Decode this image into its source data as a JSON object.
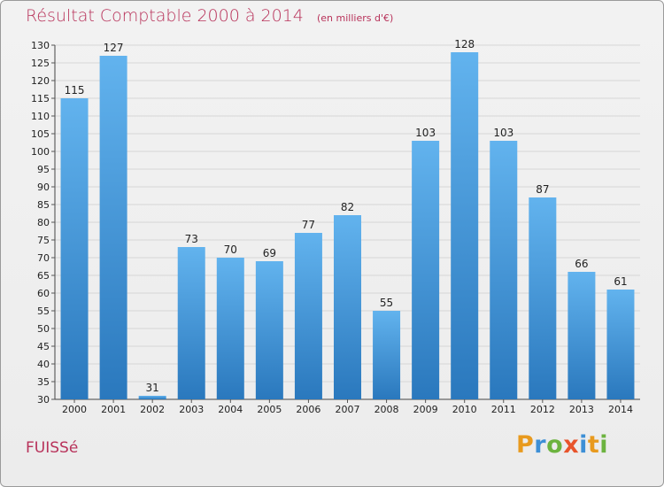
{
  "header": {
    "title": "Résultat Comptable 2000 à 2014",
    "unit": "(en milliers d'€)"
  },
  "commune": "FUISSé",
  "brand": {
    "p": "P",
    "r": "r",
    "o": "o",
    "x": "x",
    "i": "i",
    "t": "t",
    "i2": "i"
  },
  "colors": {
    "bar_top": "#62b3ee",
    "bar_bottom": "#2a78bd",
    "title": "#b8325a"
  },
  "chart_data": {
    "type": "bar",
    "title": "Résultat Comptable 2000 à 2014",
    "ylabel": "(en milliers d'€)",
    "xlabel": "",
    "categories": [
      "2000",
      "2001",
      "2002",
      "2003",
      "2004",
      "2005",
      "2006",
      "2007",
      "2008",
      "2009",
      "2010",
      "2011",
      "2012",
      "2013",
      "2014"
    ],
    "values": [
      115,
      127,
      31,
      73,
      70,
      69,
      77,
      82,
      55,
      103,
      128,
      103,
      87,
      66,
      61
    ],
    "ylim": [
      30,
      130
    ],
    "yticks": [
      30,
      35,
      40,
      45,
      50,
      55,
      60,
      65,
      70,
      75,
      80,
      85,
      90,
      95,
      100,
      105,
      110,
      115,
      120,
      125,
      130
    ],
    "grid": true,
    "legend": "none"
  }
}
